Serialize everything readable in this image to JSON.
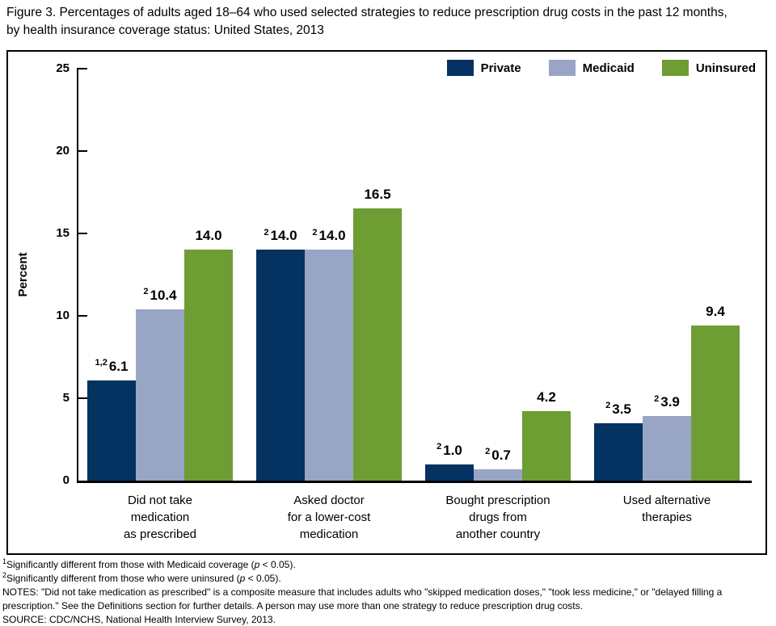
{
  "title": "Figure 3. Percentages of adults aged 18–64 who used selected strategies to reduce prescription drug costs in the past 12 months, by health insurance coverage status: United States, 2013",
  "colors": {
    "private": "#043261",
    "medicaid": "#99a5c4",
    "uninsured": "#6d9d33",
    "axis": "#000000"
  },
  "legend": {
    "items": [
      {
        "label": "Private",
        "color": "#043261"
      },
      {
        "label": "Medicaid",
        "color": "#99a5c4"
      },
      {
        "label": "Uninsured",
        "color": "#6d9d33"
      }
    ]
  },
  "chart_data": {
    "type": "bar",
    "title": "",
    "xlabel": "",
    "ylabel": "Percent",
    "ylim": [
      0,
      25
    ],
    "yticks": [
      0,
      5,
      10,
      15,
      20,
      25
    ],
    "grid": false,
    "legend_position": "top-right",
    "categories": [
      "Did not take\nmedication\nas prescribed",
      "Asked doctor\nfor a lower-cost\nmedication",
      "Bought prescription\ndrugs from\nanother country",
      "Used alternative\ntherapies"
    ],
    "series": [
      {
        "name": "Private",
        "color": "#043261",
        "values": [
          6.1,
          14.0,
          1.0,
          3.5
        ],
        "value_labels": [
          "6.1",
          "14.0",
          "1.0",
          "3.5"
        ],
        "superscripts": [
          "1,2",
          "2",
          "2",
          "2"
        ]
      },
      {
        "name": "Medicaid",
        "color": "#99a5c4",
        "values": [
          10.4,
          14.0,
          0.7,
          3.9
        ],
        "value_labels": [
          "10.4",
          "14.0",
          "0.7",
          "3.9"
        ],
        "superscripts": [
          "2",
          "2",
          "2",
          "2"
        ]
      },
      {
        "name": "Uninsured",
        "color": "#6d9d33",
        "values": [
          14.0,
          16.5,
          4.2,
          9.4
        ],
        "value_labels": [
          "14.0",
          "16.5",
          "4.2",
          "9.4"
        ],
        "superscripts": [
          "",
          "",
          "",
          ""
        ]
      }
    ]
  },
  "footnotes": {
    "f1": {
      "sup": "1",
      "pre": "Significantly different from those with Medicaid coverage (",
      "p": "p",
      "post": " < 0.05)."
    },
    "f2": {
      "sup": "2",
      "pre": "Significantly different from those who were uninsured (",
      "p": "p",
      "post": " < 0.05)."
    },
    "notes": "NOTES: \"Did not take medication as prescribed\" is a composite measure that includes adults who \"skipped medication doses,\" \"took less medicine,\" or \"delayed filling a prescription.\" See the Definitions section for further details. A person may use more than one strategy to reduce prescription drug costs.",
    "source": "SOURCE: CDC/NCHS, National Health Interview Survey, 2013."
  }
}
